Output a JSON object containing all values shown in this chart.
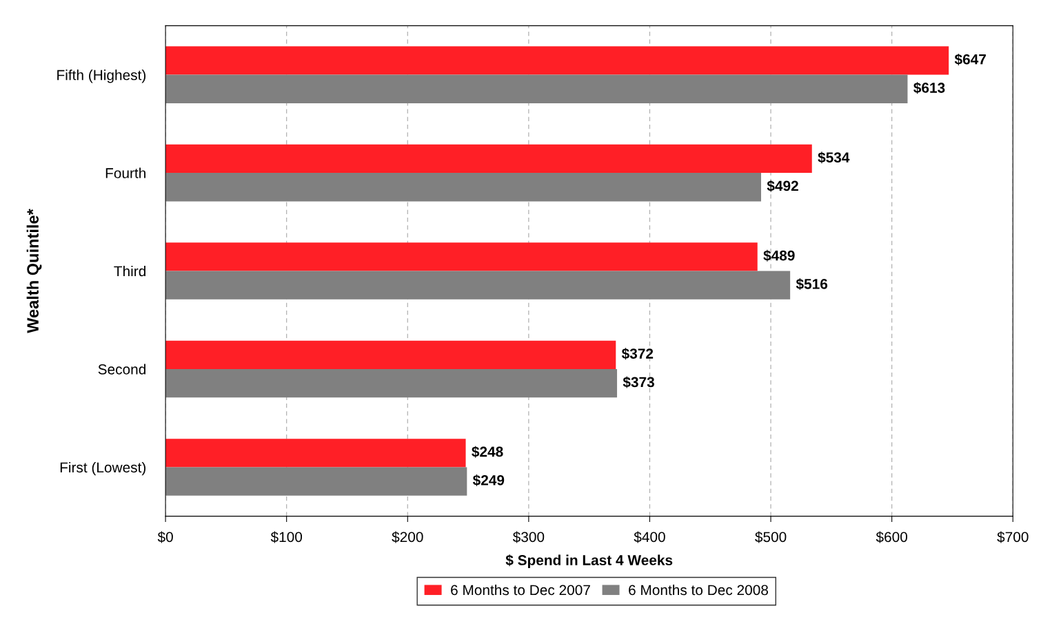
{
  "chart_data": {
    "type": "bar",
    "orientation": "horizontal",
    "xlabel": "$ Spend in Last 4 Weeks",
    "ylabel": "Wealth Quintile*",
    "categories": [
      "Fifth (Highest)",
      "Fourth",
      "Third",
      "Second",
      "First (Lowest)"
    ],
    "series": [
      {
        "name": "6 Months to Dec 2007",
        "color": "#ff1f26",
        "values": [
          647,
          534,
          489,
          372,
          248
        ],
        "value_labels": [
          "$647",
          "$534",
          "$489",
          "$372",
          "$248"
        ]
      },
      {
        "name": "6 Months to Dec 2008",
        "color": "#808080",
        "values": [
          613,
          492,
          516,
          373,
          249
        ],
        "value_labels": [
          "$613",
          "$492",
          "$516",
          "$373",
          "$249"
        ]
      }
    ],
    "xlim": [
      0,
      700
    ],
    "xticks": [
      {
        "value": 0,
        "label": "$0"
      },
      {
        "value": 100,
        "label": "$100"
      },
      {
        "value": 200,
        "label": "$200"
      },
      {
        "value": 300,
        "label": "$300"
      },
      {
        "value": 400,
        "label": "$400"
      },
      {
        "value": 500,
        "label": "$500"
      },
      {
        "value": 600,
        "label": "$600"
      },
      {
        "value": 700,
        "label": "$700"
      }
    ],
    "grid": "x",
    "line_style": "dashed",
    "legend": "bottom"
  }
}
